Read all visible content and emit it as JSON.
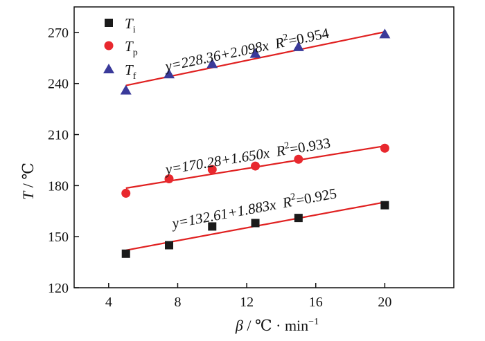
{
  "chart_data": {
    "type": "scatter",
    "xlabel": {
      "symbol": "β",
      "unit": " / ℃ · min",
      "sup": "−1"
    },
    "ylabel": {
      "symbol": "T",
      "unit": " / ℃"
    },
    "xlim": [
      2,
      24
    ],
    "ylim": [
      120,
      285
    ],
    "xticks": [
      4,
      8,
      12,
      16,
      20
    ],
    "yticks": [
      120,
      150,
      180,
      210,
      240,
      270
    ],
    "grid": false,
    "legend_position": "top-left",
    "series": [
      {
        "legend_symbol": "T",
        "legend_sub": "i",
        "marker": "square",
        "color": "#1a1a1a",
        "x": [
          5,
          7.5,
          10,
          12.5,
          15,
          20
        ],
        "y": [
          140,
          145,
          156,
          158,
          161,
          168.5
        ],
        "fit": {
          "intercept": 132.61,
          "slope": 1.883,
          "line_color": "#e02020",
          "eq": "y=132.61+1.883x",
          "r2_prefix": "R",
          "r2_power": "2",
          "r2_value": "=0.925"
        }
      },
      {
        "legend_symbol": "T",
        "legend_sub": "p",
        "marker": "circle",
        "color": "#e8282e",
        "x": [
          5,
          7.5,
          10,
          12.5,
          15,
          20
        ],
        "y": [
          175.5,
          184,
          189.5,
          191.5,
          195.5,
          202
        ],
        "fit": {
          "intercept": 170.28,
          "slope": 1.65,
          "line_color": "#e02020",
          "eq": "y=170.28+1.650x",
          "r2_prefix": "R",
          "r2_power": "2",
          "r2_value": "=0.933"
        }
      },
      {
        "legend_symbol": "T",
        "legend_sub": "f",
        "marker": "triangle",
        "color": "#3a3a9a",
        "x": [
          5,
          7.5,
          10,
          12.5,
          15,
          20
        ],
        "y": [
          236,
          245.5,
          251.5,
          257.5,
          261.5,
          269
        ],
        "fit": {
          "intercept": 228.36,
          "slope": 2.098,
          "line_color": "#e02020",
          "eq": "y=228.36+2.098x",
          "r2_prefix": "R",
          "r2_power": "2",
          "r2_value": "=0.954"
        }
      }
    ]
  }
}
